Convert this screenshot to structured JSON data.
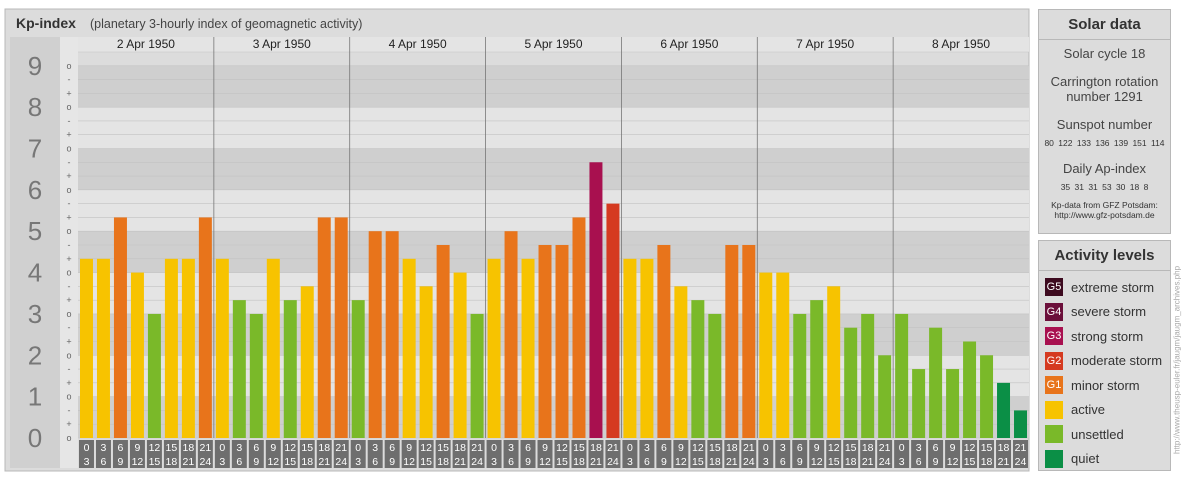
{
  "header": {
    "title": "Kp-index",
    "subtitle": "(planetary 3-hourly index of geomagnetic activity)"
  },
  "chart_data": {
    "type": "bar",
    "title": "Kp-index",
    "subtitle": "(planetary 3-hourly index of geomagnetic activity)",
    "days": [
      "2 Apr 1950",
      "3 Apr 1950",
      "4 Apr 1950",
      "5 Apr 1950",
      "6 Apr 1950",
      "7 Apr 1950",
      "8 Apr 1950"
    ],
    "hour_labels": [
      [
        "0",
        "3"
      ],
      [
        "3",
        "6"
      ],
      [
        "6",
        "9"
      ],
      [
        "9",
        "12"
      ],
      [
        "12",
        "15"
      ],
      [
        "15",
        "18"
      ],
      [
        "18",
        "21"
      ],
      [
        "21",
        "24"
      ]
    ],
    "y_major_labels": [
      "0",
      "1",
      "2",
      "3",
      "4",
      "5",
      "6",
      "7",
      "8",
      "9"
    ],
    "y_minor_labels": [
      "o",
      "+",
      "-"
    ],
    "ylim": [
      0,
      9.3333
    ],
    "values": [
      4.333,
      4.333,
      5.333,
      4.0,
      3.0,
      4.333,
      4.333,
      5.333,
      4.333,
      3.333,
      3.0,
      4.333,
      3.333,
      3.667,
      5.333,
      5.333,
      3.333,
      5.0,
      5.0,
      4.333,
      3.667,
      4.667,
      4.0,
      3.0,
      4.333,
      5.0,
      4.333,
      4.667,
      4.667,
      5.333,
      6.667,
      5.667,
      4.333,
      4.333,
      4.667,
      3.667,
      3.333,
      3.0,
      4.667,
      4.667,
      4.0,
      4.0,
      3.0,
      3.333,
      3.667,
      2.667,
      3.0,
      2.0,
      3.0,
      1.667,
      2.667,
      1.667,
      2.333,
      2.0,
      1.333,
      0.667
    ],
    "level_colors": {
      "G5": "#3d0a1f",
      "G4": "#6b0f3a",
      "G3": "#a8104f",
      "G2": "#d53a20",
      "G1": "#e8741b",
      "active": "#f7c300",
      "unsettled": "#7ab929",
      "quiet": "#0b8f46"
    },
    "grid": true
  },
  "solar": {
    "title": "Solar data",
    "cycle": "Solar cycle 18",
    "carrington_line1": "Carrington rotation",
    "carrington_line2": "number 1291",
    "sunspot_title": "Sunspot number",
    "sunspot_values": "80 122 133 136 139 151 114",
    "ap_title": "Daily Ap-index",
    "ap_values": "35 31 31 53 30 18 8",
    "credit_line1": "Kp-data from GFZ Potsdam:",
    "credit_line2": "http://www.gfz-potsdam.de"
  },
  "levels": {
    "title": "Activity levels",
    "items": [
      {
        "badge": "G5",
        "label": "extreme storm",
        "color": "#3d0a1f"
      },
      {
        "badge": "G4",
        "label": "severe storm",
        "color": "#6b0f3a"
      },
      {
        "badge": "G3",
        "label": "strong storm",
        "color": "#a8104f"
      },
      {
        "badge": "G2",
        "label": "moderate storm",
        "color": "#d53a20"
      },
      {
        "badge": "G1",
        "label": "minor storm",
        "color": "#e8741b"
      },
      {
        "badge": "",
        "label": "active",
        "color": "#f7c300"
      },
      {
        "badge": "",
        "label": "unsettled",
        "color": "#7ab929"
      },
      {
        "badge": "",
        "label": "quiet",
        "color": "#0b8f46"
      }
    ]
  },
  "footer": {
    "vertical_url": "http://www.theusp-euler.fr/jaugm/jaugm_archives.php"
  }
}
